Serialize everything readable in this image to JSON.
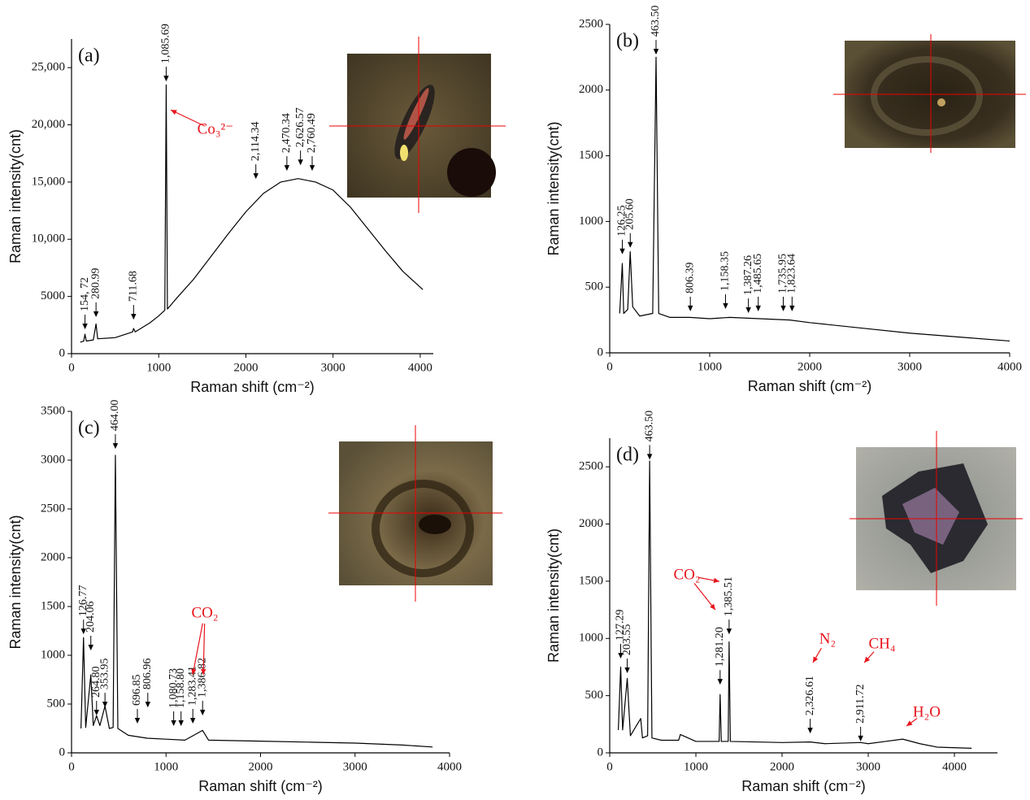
{
  "chart_data": [
    {
      "type": "line",
      "panel_label": "(a)",
      "xlabel": "Raman shift (cm⁻²)",
      "ylabel": "Raman intensity(cnt)",
      "xlim": [
        0,
        4150
      ],
      "ylim": [
        0,
        27500
      ],
      "xticks": [
        0,
        1000,
        2000,
        3000,
        4000
      ],
      "yticks": [
        0,
        5000,
        {
          "value": 10000,
          "label": "10,000"
        },
        {
          "value": 15000,
          "label": "15,000"
        },
        {
          "value": 20000,
          "label": "20,000"
        },
        {
          "value": 25000,
          "label": "25,000"
        }
      ],
      "color": "#000000",
      "highlight_color": "#e8141c",
      "x": [
        100,
        140,
        154,
        170,
        250,
        281,
        300,
        500,
        700,
        712,
        730,
        900,
        1000,
        1070,
        1086,
        1100,
        1200,
        1400,
        1600,
        1800,
        2000,
        2200,
        2400,
        2600,
        2800,
        3000,
        3200,
        3400,
        3600,
        3800,
        4030
      ],
      "values": [
        1000,
        1100,
        1700,
        1100,
        1200,
        2600,
        1300,
        1400,
        1900,
        2200,
        1900,
        2700,
        3300,
        3800,
        23500,
        3900,
        4800,
        6500,
        8500,
        10500,
        12400,
        14000,
        15000,
        15300,
        15000,
        14300,
        12800,
        10900,
        9000,
        7200,
        5600
      ],
      "peaks": [
        {
          "x": 154.72,
          "y": 2130,
          "label": "154, 72"
        },
        {
          "x": 280.99,
          "y": 3200,
          "label": "280.99"
        },
        {
          "x": 711.68,
          "y": 2980,
          "label": "711.68"
        },
        {
          "x": 1085.69,
          "y": 23800,
          "label": "1,085.69"
        },
        {
          "x": 2114.34,
          "y": 15270,
          "label": "2,114.34"
        },
        {
          "x": 2470.34,
          "y": 15980,
          "label": "2,470.34"
        },
        {
          "x": 2626.57,
          "y": 16470,
          "label": "2,626.57"
        },
        {
          "x": 2760.49,
          "y": 15980,
          "label": "2,760.49"
        }
      ],
      "notes": [
        {
          "label": "Co₃²⁻",
          "x": 1650,
          "y": 19525,
          "arrows": [
            [
              1138,
              21300
            ]
          ]
        }
      ]
    },
    {
      "type": "line",
      "panel_label": "(b)",
      "xlabel": "Raman shift (cm⁻²)",
      "ylabel": "Raman intensity(cnt)",
      "xlim": [
        0,
        4000
      ],
      "ylim": [
        0,
        2500
      ],
      "xticks": [
        0,
        1000,
        2000,
        3000,
        4000
      ],
      "yticks": [
        0,
        500,
        1000,
        1500,
        2000,
        2500
      ],
      "color": "#000000",
      "x": [
        100,
        126,
        140,
        180,
        205,
        230,
        300,
        430,
        463.5,
        490,
        600,
        800,
        1000,
        1200,
        1500,
        1800,
        2000,
        2500,
        3000,
        3500,
        4000
      ],
      "values": [
        300,
        680,
        300,
        330,
        770,
        350,
        280,
        300,
        2250,
        300,
        270,
        270,
        260,
        270,
        260,
        250,
        230,
        190,
        150,
        120,
        90
      ],
      "peaks": [
        {
          "x": 126.25,
          "y": 750,
          "label": "126.25"
        },
        {
          "x": 205.6,
          "y": 800,
          "label": "205.60"
        },
        {
          "x": 463.5,
          "y": 2270,
          "label": "463.50"
        },
        {
          "x": 806.39,
          "y": 316,
          "label": "806.39"
        },
        {
          "x": 1158.35,
          "y": 334,
          "label": "1,158.35"
        },
        {
          "x": 1387.26,
          "y": 303,
          "label": "1,387.26"
        },
        {
          "x": 1485.65,
          "y": 316,
          "label": "1,485.65"
        },
        {
          "x": 1735.95,
          "y": 316,
          "label": "1,735.95"
        },
        {
          "x": 1823.64,
          "y": 316,
          "label": "1,823.64"
        }
      ]
    },
    {
      "type": "line",
      "panel_label": "(c)",
      "xlabel": "Raman shift (cm⁻²)",
      "ylabel": "Raman intensity(cnt)",
      "xlim": [
        0,
        4000
      ],
      "ylim": [
        0,
        3500
      ],
      "xticks": [
        0,
        1000,
        2000,
        3000,
        4000
      ],
      "yticks": [
        0,
        500,
        1000,
        1500,
        2000,
        2500,
        3000,
        3500
      ],
      "color": "#000000",
      "highlight_color": "#e8141c",
      "x": [
        100,
        126.77,
        150,
        204.06,
        230,
        264.8,
        300,
        353.95,
        400,
        440,
        464,
        490,
        600,
        800,
        1000,
        1200,
        1386.82,
        1450,
        2000,
        2500,
        3000,
        3500,
        3820
      ],
      "values": [
        250,
        1180,
        260,
        800,
        280,
        380,
        280,
        480,
        250,
        260,
        3050,
        250,
        180,
        150,
        140,
        130,
        230,
        130,
        120,
        110,
        100,
        80,
        60
      ],
      "peaks": [
        {
          "x": 126.77,
          "y": 1216,
          "label": "126.77"
        },
        {
          "x": 204.06,
          "y": 1050,
          "label": "204.06"
        },
        {
          "x": 264.8,
          "y": 383,
          "label": "264.80"
        },
        {
          "x": 353.95,
          "y": 466,
          "label": "353.95"
        },
        {
          "x": 464,
          "y": 3116,
          "label": "464.00"
        },
        {
          "x": 696.85,
          "y": 300,
          "label": "696.85"
        },
        {
          "x": 806.96,
          "y": 466,
          "label": "806.96"
        },
        {
          "x": 1080.73,
          "y": 275,
          "label": "1,080.73"
        },
        {
          "x": 1158.8,
          "y": 275,
          "label": "1,158.80"
        },
        {
          "x": 1283.41,
          "y": 300,
          "label": "1,283.41"
        },
        {
          "x": 1386.82,
          "y": 383,
          "label": "1,386.82"
        }
      ],
      "notes": [
        {
          "label": "CO₂",
          "x": 1411,
          "y": 1425,
          "arrows": [
            [
              1282,
              800
            ],
            [
              1394,
              800
            ]
          ]
        }
      ]
    },
    {
      "type": "line",
      "panel_label": "(d)",
      "xlabel": "Raman shift (cm⁻²)",
      "ylabel": "Raman intensity(cnt)",
      "xlim": [
        0,
        4500
      ],
      "ylim": [
        0,
        2750
      ],
      "xticks": [
        0,
        1000,
        2000,
        3000,
        4000
      ],
      "yticks": [
        0,
        500,
        1000,
        1500,
        2000,
        2500
      ],
      "color": "#000000",
      "highlight_color": "#e8141c",
      "x": [
        100,
        127.29,
        150,
        203.55,
        240,
        360,
        380,
        440,
        463.5,
        490,
        600,
        800,
        820,
        1000,
        1270,
        1281.2,
        1295,
        1375,
        1385.51,
        1400,
        2000,
        2326.61,
        2500,
        2911.72,
        3000,
        3200,
        3400,
        3600,
        3800,
        4200
      ],
      "values": [
        200,
        750,
        200,
        650,
        150,
        300,
        130,
        150,
        2550,
        130,
        110,
        110,
        160,
        100,
        100,
        510,
        100,
        100,
        970,
        100,
        90,
        95,
        80,
        90,
        80,
        100,
        120,
        80,
        50,
        40
      ],
      "peaks": [
        {
          "x": 127.29,
          "y": 824,
          "label": "127.29"
        },
        {
          "x": 203.55,
          "y": 696,
          "label": "203.55"
        },
        {
          "x": 463.5,
          "y": 2563,
          "label": "463.50"
        },
        {
          "x": 1281.2,
          "y": 596,
          "label": "1,281.20"
        },
        {
          "x": 1385.51,
          "y": 1037,
          "label": "1,385.51"
        },
        {
          "x": 2326.61,
          "y": 170,
          "label": "2,326.61"
        },
        {
          "x": 2911.72,
          "y": 100,
          "label": "2,911.72"
        }
      ],
      "notes": [
        {
          "label": "CO₂",
          "x": 896,
          "y": 1548,
          "arrows": [
            [
              1274,
              1498
            ],
            [
              1226,
              1250
            ]
          ]
        },
        {
          "label": "N₂",
          "x": 2528,
          "y": 987,
          "arrows": [
            [
              2358,
              788
            ]
          ]
        },
        {
          "label": "CH₄",
          "x": 3160,
          "y": 944,
          "arrows": [
            [
              2953,
              788
            ]
          ]
        },
        {
          "label": "H₂O",
          "x": 3679,
          "y": 348,
          "arrows": [
            [
              3443,
              234
            ]
          ]
        }
      ]
    }
  ]
}
